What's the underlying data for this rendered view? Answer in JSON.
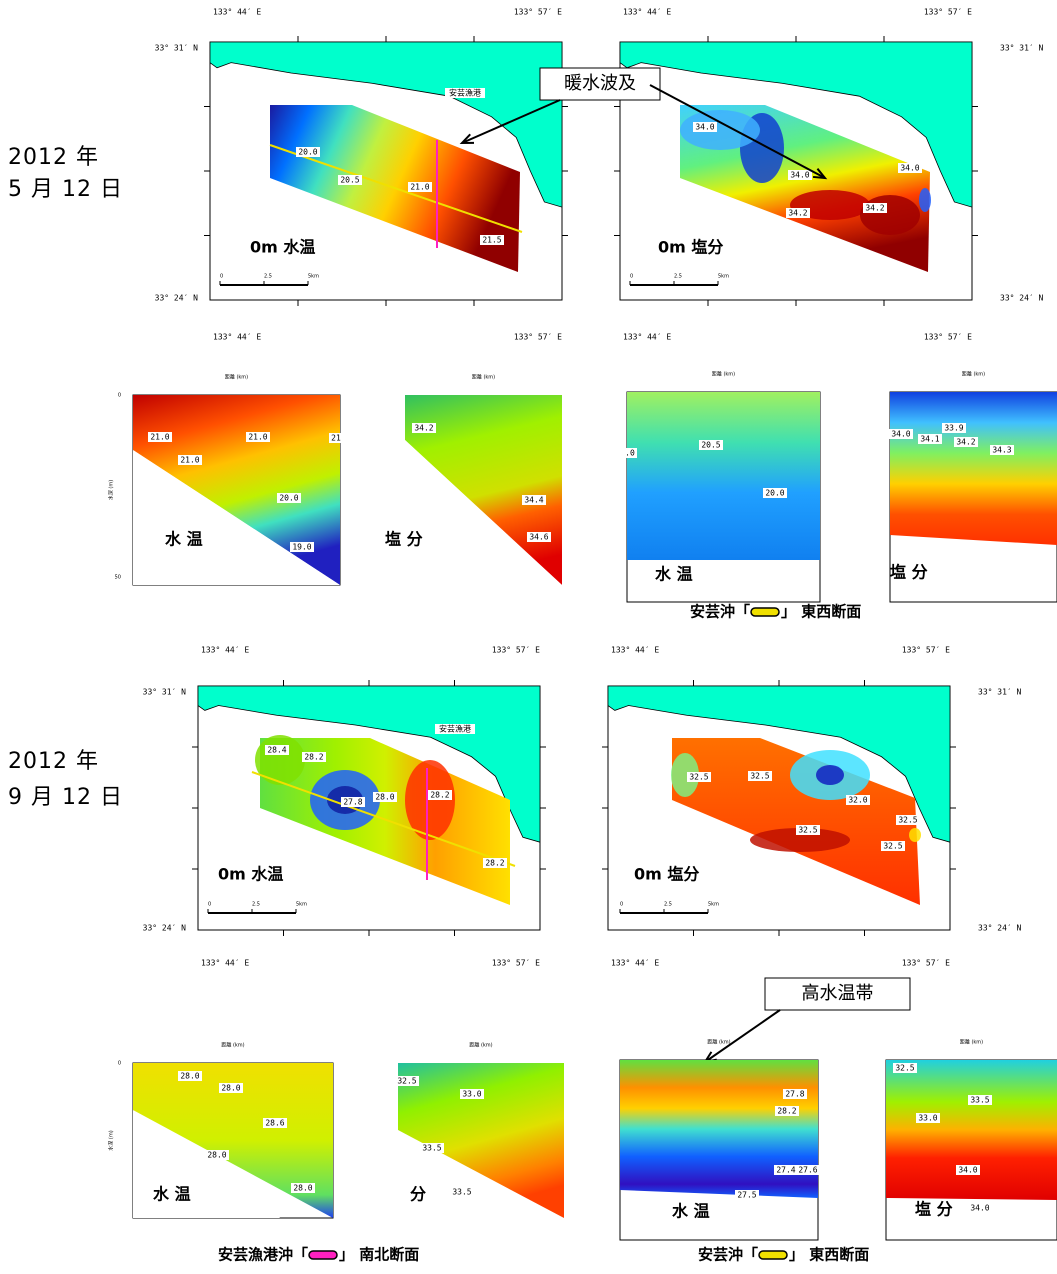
{
  "sections": [
    {
      "date_year": "2012 年",
      "date_day": "5 月 12 日",
      "lon_labels": [
        "133° 44′ E",
        "133° 57′ E",
        "133° 44′ E",
        "133° 57′ E"
      ],
      "lat_labels": [
        "33° 31′ N",
        "33° 24′ N",
        "33° 31′ N",
        "33° 24′ N"
      ],
      "maps": [
        {
          "label": "0m 水温",
          "port": "安芸漁港",
          "contours": [
            "20.0",
            "20.5",
            "21.0",
            "21.5"
          ],
          "scale": [
            "0",
            "2.5",
            "5km"
          ]
        },
        {
          "label": "0m 塩分",
          "contours": [
            "34.0",
            "34.0",
            "34.0",
            "34.2",
            "34.2"
          ],
          "scale": [
            "0",
            "2.5",
            "5km"
          ]
        }
      ],
      "callout": "暖水波及",
      "lower_lon_labels": [
        "133° 44′ E",
        "133° 57′ E",
        "133° 44′ E",
        "133° 57′ E"
      ],
      "profiles": [
        {
          "label": "水 温",
          "x_title": "距離 (km)",
          "y_title": "水深 (m)",
          "depth_ticks": [
            "0",
            "50"
          ],
          "contours": [
            "21.0",
            "21.0",
            "21.0",
            "21",
            "20.0",
            "19.0"
          ]
        },
        {
          "label": "塩 分",
          "x_title": "距離 (km)",
          "contours": [
            "34.2",
            "34.4",
            "34.6"
          ]
        },
        {
          "label": "水 温",
          "x_title": "距離 (km)",
          "contours": [
            ".0",
            "20.5",
            "20.0"
          ]
        },
        {
          "label": "塩 分",
          "x_title": "距離 (km)",
          "contours": [
            "34.0",
            "34.1",
            "33.9",
            "34.2",
            "34.3"
          ]
        }
      ],
      "captions": [
        {
          "before": "安芸沖「",
          "after": "」 東西断面"
        }
      ]
    },
    {
      "date_year": "2012 年",
      "date_day": "9 月 12 日",
      "lon_labels": [
        "133° 44′ E",
        "133° 57′ E",
        "133° 44′ E",
        "133° 57′ E"
      ],
      "lat_labels": [
        "33° 31′ N",
        "33° 24′ N",
        "33° 31′ N",
        "33° 24′ N"
      ],
      "maps": [
        {
          "label": "0m 水温",
          "port": "安芸漁港",
          "contours": [
            "28.4",
            "28.2",
            "27.8",
            "28.0",
            "28.2",
            "28.2"
          ],
          "scale": [
            "0",
            "2.5",
            "5km"
          ]
        },
        {
          "label": "0m 塩分",
          "contours": [
            "32.5",
            "32.5",
            "32.0",
            "32.5",
            "32.5",
            "32.5"
          ],
          "scale": [
            "0",
            "2.5",
            "5km"
          ]
        }
      ],
      "callout": "高水温帯",
      "lower_lon_labels": [
        "133° 44′ E",
        "133° 57′ E",
        "133° 44′ E",
        "133° 57′ E"
      ],
      "profiles": [
        {
          "label": "水 温",
          "x_title": "距離 (km)",
          "y_title": "水深 (m)",
          "depth_ticks": [
            "0"
          ],
          "contours": [
            "28.0",
            "28.0",
            "28.6",
            "28.0",
            "28.0"
          ]
        },
        {
          "label": "分",
          "x_title": "距離 (km)",
          "contours": [
            "32.5",
            "33.0",
            "33.5",
            "33.5"
          ]
        },
        {
          "label": "水 温",
          "x_title": "距離 (km)",
          "contours": [
            "27.8",
            "28.2",
            "27.4",
            "27.6",
            "27.5"
          ]
        },
        {
          "label": "塩 分",
          "x_title": "距離 (km)",
          "contours": [
            "32.5",
            "33.0",
            "33.5",
            "34.0",
            "34.0"
          ]
        }
      ],
      "captions": [
        {
          "before": "安芸漁港沖「",
          "after": "」 南北断面"
        },
        {
          "before": "安芸沖「",
          "after": "」 東西断面"
        }
      ]
    }
  ]
}
